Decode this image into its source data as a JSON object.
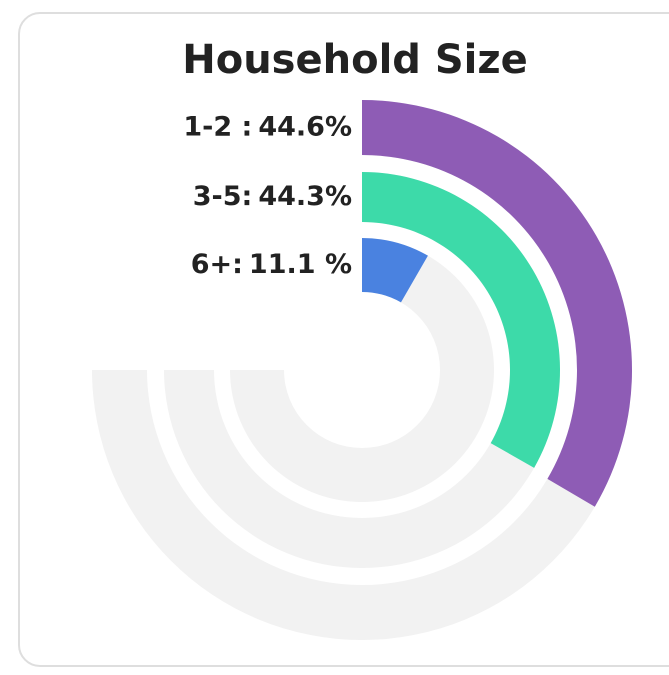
{
  "chart_data": {
    "type": "radialBar",
    "title": "Household Size",
    "categories": [
      "1-2 :",
      "3-5:",
      "6+:"
    ],
    "values": [
      44.6,
      44.3,
      11.1
    ],
    "value_labels": [
      "44.6%",
      "44.3%",
      "11.1 %"
    ],
    "colors": [
      "#8e5cb5",
      "#3ddaa9",
      "#4a82e0"
    ],
    "track_color": "#f2f2f2",
    "ylim": [
      0,
      100
    ]
  }
}
